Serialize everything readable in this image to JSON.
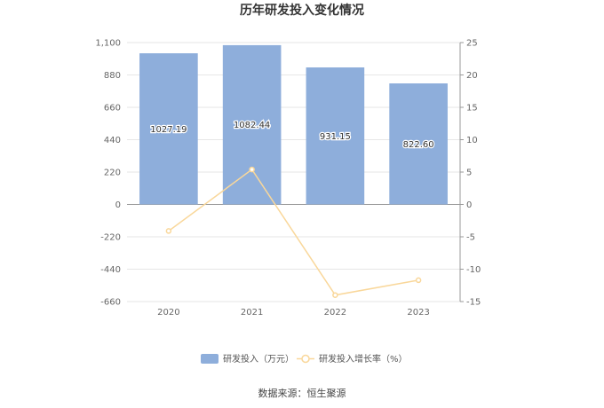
{
  "chart_data": {
    "type": "bar",
    "title": "历年研发投入变化情况",
    "categories": [
      "2020",
      "2021",
      "2022",
      "2023"
    ],
    "series": [
      {
        "name": "研发投入（万元）",
        "type": "bar",
        "axis": "left",
        "values": [
          1027.19,
          1082.44,
          931.15,
          822.6
        ],
        "labels": [
          "1027.19",
          "1082.44",
          "931.15",
          "822.60"
        ]
      },
      {
        "name": "研发投入增长率（%）",
        "type": "line",
        "axis": "right",
        "values": [
          -4.1,
          5.4,
          -14.0,
          -11.7
        ]
      }
    ],
    "y_left": {
      "min": -660,
      "max": 1100,
      "ticks": [
        1100,
        880,
        660,
        440,
        220,
        0,
        -220,
        -440,
        -660
      ],
      "tick_labels": [
        "1,100",
        "880",
        "660",
        "440",
        "220",
        "0",
        "-220",
        "-440",
        "-660"
      ]
    },
    "y_right": {
      "min": -15,
      "max": 25,
      "ticks": [
        25,
        20,
        15,
        10,
        5,
        0,
        -5,
        -10,
        -15
      ],
      "tick_labels": [
        "25",
        "20",
        "15",
        "10",
        "5",
        "0",
        "-5",
        "-10",
        "-15"
      ]
    },
    "grid": true,
    "legend": "bottom-center",
    "colors": {
      "bar": "#8eaedb",
      "line": "#f9d79a",
      "grid": "#e6e6e6",
      "axis": "#999999"
    }
  },
  "source_text": "数据来源：恒生聚源"
}
